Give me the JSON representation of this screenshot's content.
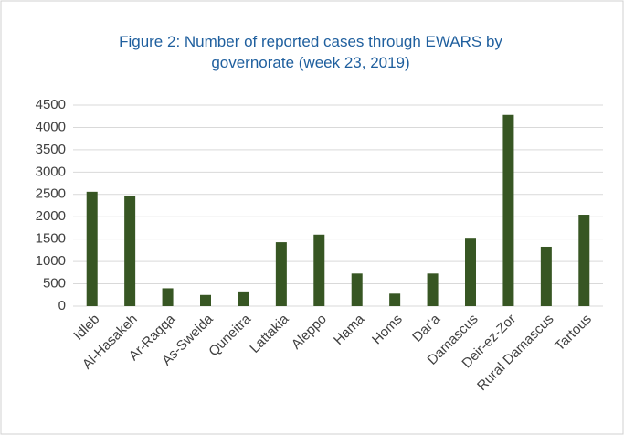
{
  "chart_data": {
    "type": "bar",
    "title": "Figure 2: Number of reported cases through EWARS by governorate (week 23, 2019)",
    "categories": [
      "Idleb",
      "Al-Hasakeh",
      "Ar-Raqqa",
      "As-Sweida",
      "Quneitra",
      "Lattakia",
      "Aleppo",
      "Hama",
      "Homs",
      "Dar'a",
      "Damascus",
      "Deir-ez-Zor",
      "Rural Damascus",
      "Tartous"
    ],
    "values": [
      2560,
      2470,
      400,
      250,
      330,
      1430,
      1600,
      730,
      280,
      730,
      1530,
      4280,
      1330,
      2045
    ],
    "color": "#375623",
    "ylim": [
      0,
      4500
    ],
    "yticks": [
      0,
      500,
      1000,
      1500,
      2000,
      2500,
      3000,
      3500,
      4000,
      4500
    ],
    "grid": true
  }
}
